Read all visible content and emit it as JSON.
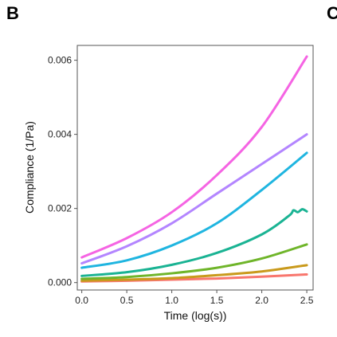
{
  "panel_label": "B",
  "clipped_panel_label": "C",
  "chart_data": {
    "type": "line",
    "xlabel": "Time (log(s))",
    "ylabel": "Compliance (1/Pa)",
    "xlim": [
      -0.05,
      2.57
    ],
    "ylim": [
      -0.0002,
      0.0064
    ],
    "xticks": [
      0.0,
      0.5,
      1.0,
      1.5,
      2.0,
      2.5
    ],
    "xtick_labels": [
      "0.0",
      "0.5",
      "1.0",
      "1.5",
      "2.0",
      "2.5"
    ],
    "yticks": [
      0.0,
      0.002,
      0.004,
      0.006
    ],
    "ytick_labels": [
      "0.000",
      "0.002",
      "0.004",
      "0.006"
    ],
    "grid": false,
    "legend": "none",
    "series": [
      {
        "color": "#f564e3",
        "x": [
          0.0,
          0.5,
          1.0,
          1.5,
          2.0,
          2.5
        ],
        "y": [
          0.00068,
          0.0012,
          0.0019,
          0.0029,
          0.0042,
          0.0061
        ]
      },
      {
        "color": "#b385ff",
        "x": [
          0.0,
          0.5,
          1.0,
          1.5,
          2.0,
          2.5
        ],
        "y": [
          0.00052,
          0.00098,
          0.0016,
          0.0024,
          0.0032,
          0.004
        ]
      },
      {
        "color": "#1fb5e0",
        "x": [
          0.0,
          0.5,
          1.0,
          1.5,
          2.0,
          2.5
        ],
        "y": [
          0.0004,
          0.0006,
          0.001,
          0.0016,
          0.0025,
          0.0035
        ]
      },
      {
        "color": "#1ab393",
        "x": [
          0.0,
          0.5,
          1.0,
          1.5,
          2.0,
          2.3,
          2.35,
          2.4,
          2.45,
          2.5
        ],
        "y": [
          0.00018,
          0.00028,
          0.00048,
          0.0008,
          0.0013,
          0.0018,
          0.00195,
          0.0019,
          0.00198,
          0.00192
        ]
      },
      {
        "color": "#6fb52a",
        "x": [
          0.0,
          0.5,
          1.0,
          1.5,
          2.0,
          2.5
        ],
        "y": [
          0.0001,
          0.00015,
          0.00025,
          0.0004,
          0.00065,
          0.00103
        ]
      },
      {
        "color": "#c99a1c",
        "x": [
          0.0,
          0.5,
          1.0,
          1.5,
          2.0,
          2.5
        ],
        "y": [
          5e-05,
          8e-05,
          0.00012,
          0.0002,
          0.0003,
          0.00047
        ]
      },
      {
        "color": "#f8766d",
        "x": [
          0.0,
          0.5,
          1.0,
          1.5,
          2.0,
          2.5
        ],
        "y": [
          3e-05,
          5e-05,
          8e-05,
          0.00011,
          0.00016,
          0.00022
        ]
      }
    ]
  }
}
